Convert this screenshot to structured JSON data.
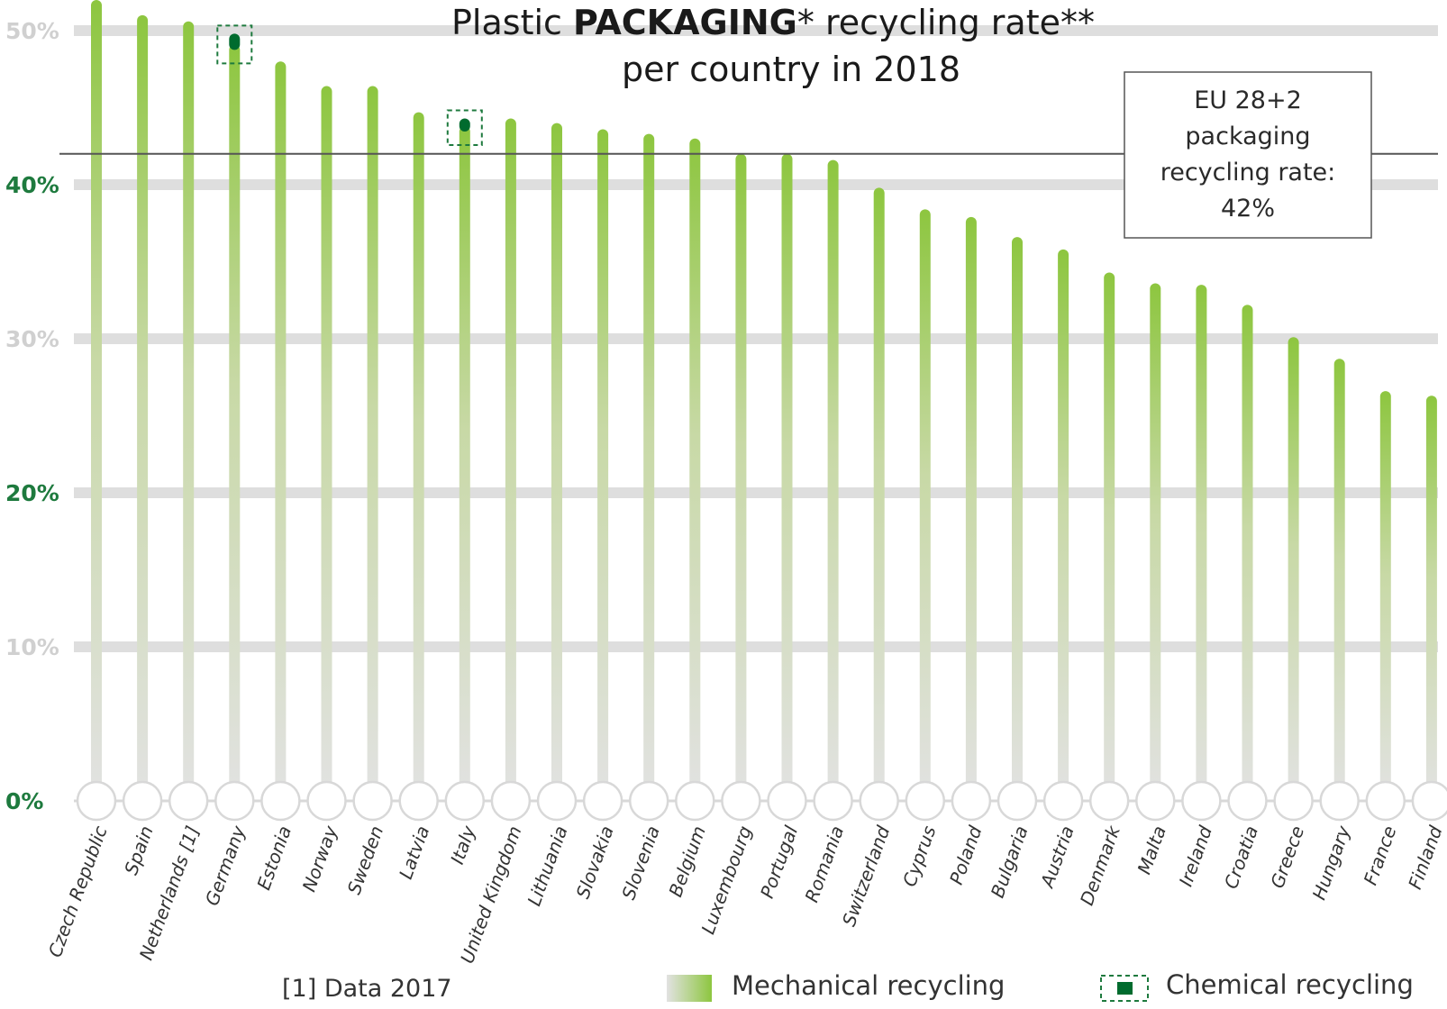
{
  "chart_data": {
    "type": "bar",
    "title_line1_pre": "Plastic ",
    "title_line1_bold": "PACKAGING",
    "title_line1_post": "* recycling rate**",
    "title_line2": "per country in 2018",
    "y_unit": "%",
    "ylim": [
      0,
      52
    ],
    "yticks": [
      {
        "value": 0,
        "label": "0%"
      },
      {
        "value": 10,
        "label": "10%"
      },
      {
        "value": 20,
        "label": "20%"
      },
      {
        "value": 30,
        "label": "30%"
      },
      {
        "value": 40,
        "label": "40%"
      },
      {
        "value": 50,
        "label": "50%"
      }
    ],
    "categories": [
      "Czech Republic",
      "Spain",
      "Netherlands [1]",
      "Germany",
      "Estonia",
      "Norway",
      "Sweden",
      "Latvia",
      "Italy",
      "United Kingdom",
      "Lithuania",
      "Slovakia",
      "Slovenia",
      "Belgium",
      "Luxembourg",
      "Portugal",
      "Romania",
      "Switzerland",
      "Cyprus",
      "Poland",
      "Bulgaria",
      "Austria",
      "Denmark",
      "Malta",
      "Ireland",
      "Croatia",
      "Greece",
      "Hungary",
      "France",
      "Finland"
    ],
    "series": [
      {
        "name": "Mechanical recycling",
        "values": [
          52.0,
          51.0,
          50.6,
          49.1,
          48.0,
          46.4,
          46.4,
          44.7,
          43.8,
          44.3,
          44.0,
          43.6,
          43.3,
          43.0,
          42.0,
          42.0,
          41.6,
          39.8,
          38.4,
          37.9,
          36.6,
          35.8,
          34.3,
          33.6,
          33.5,
          32.2,
          30.1,
          28.7,
          26.6,
          26.3
        ],
        "color": "#8dc63f"
      },
      {
        "name": "Chemical recycling",
        "values": [
          0,
          0,
          0,
          0.7,
          0,
          0,
          0,
          0,
          0.5,
          0,
          0,
          0,
          0,
          0,
          0,
          0,
          0,
          0,
          0,
          0,
          0,
          0,
          0,
          0,
          0,
          0,
          0,
          0,
          0,
          0
        ],
        "color": "#006b2e"
      }
    ],
    "reference_line": {
      "value": 42,
      "label_lines": [
        "EU 28+2",
        "packaging",
        "recycling rate:",
        "42%"
      ]
    },
    "legend": {
      "placement": "bottom-right"
    },
    "footnote": "[1] Data 2017",
    "colors": {
      "bar_top": "#8dc63f",
      "bar_bottom": "#e2e2e2",
      "gridline": "#dedede",
      "reference": "#555555",
      "ytick_strong": "#1e7a3e",
      "ytick_faint": "#d0d0d0"
    }
  }
}
